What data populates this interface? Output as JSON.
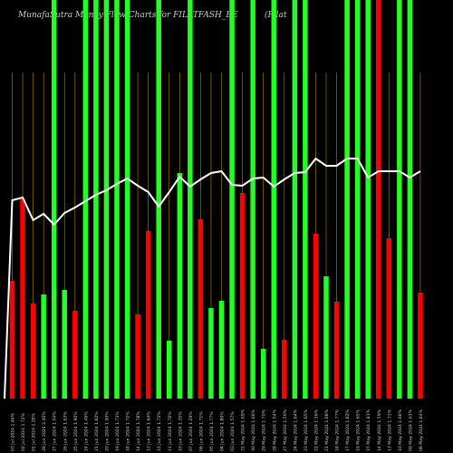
{
  "chart_data": {
    "type": "bar",
    "title": "MunafaSutra  Money Flow  Charts for FILATFASH_BE",
    "title_right": "(Filat",
    "ylim": [
      0,
      440
    ],
    "categories": [
      "03 Jul 2024 1.46%",
      "02 Jul 2024 1.72%",
      "01 Jul 2024 1.28%",
      "28 Jun 2024 2.40%",
      "27 Jun 2024 1.54%",
      "26 Jun 2024 1.93%",
      "25 Jun 2024 1.90%",
      "24 Jun 2024 1.46%",
      "21 Jun 2024 1.82%",
      "20 Jun 2024 1.90%",
      "19 Jun 2024 1.73%",
      "18 Jun 2024 1.72%",
      "14 Jun 2024 1.78%",
      "13 Jun 2024 1.64%",
      "12 Jun 2024 1.72%",
      "11 Jun 2024 1.76%",
      "10 Jun 2024 1.35%",
      "07 Jun 2024 1.29%",
      "06 Jun 2024 1.71%",
      "05 Jun 2024 1.77%",
      "04 Jun 2024 1.80%",
      "03 Jun 2024 1.57%",
      "31 May 2024 1.69%",
      "30 May 2024 1.66%",
      "29 May 2024 1.70%",
      "28 May 2024 1.54%",
      "27 May 2024 1.50%",
      "24 May 2024 1.64%",
      "23 May 2024 1.65%",
      "22 May 2024 1.56%",
      "21 May 2024 1.68%",
      "18 May 2024 1.77%",
      "17 May 2024 1.82%",
      "16 May 2024 1.65%",
      "15 May 2024 1.81%",
      "14 May 2024 1.59%",
      "13 May 2024 1.71%",
      "10 May 2024 1.68%",
      "09 May 2024 1.61%",
      "08 May 2024 1.64%"
    ],
    "series": [
      {
        "values": [
          130,
          220,
          105,
          115,
          440,
          120,
          97,
          440,
          440,
          440,
          440,
          440,
          93,
          185,
          440,
          64,
          249,
          440,
          198,
          100,
          108,
          440,
          227,
          440,
          55,
          440,
          65,
          440,
          440,
          182,
          135,
          107,
          440,
          440,
          440,
          440,
          177,
          440,
          440,
          117
        ],
        "colors": [
          "red",
          "red",
          "red",
          "green",
          "green",
          "green",
          "red",
          "green",
          "green",
          "green",
          "green",
          "green",
          "red",
          "red",
          "green",
          "green",
          "green",
          "green",
          "red",
          "green",
          "green",
          "green",
          "red",
          "green",
          "green",
          "green",
          "red",
          "green",
          "green",
          "red",
          "green",
          "red",
          "green",
          "green",
          "green",
          "red",
          "red",
          "green",
          "green",
          "red"
        ]
      }
    ],
    "line": [
      221,
      218,
      243,
      236,
      248,
      235,
      229,
      222,
      215,
      210,
      203,
      197,
      205,
      212,
      228,
      212,
      195,
      206,
      198,
      191,
      189,
      204,
      205,
      197,
      196,
      206,
      198,
      191,
      190,
      175,
      183,
      183,
      175,
      175,
      196,
      189,
      189,
      189,
      196,
      189
    ],
    "guide_lines": "orange vertical lines above bars",
    "grid": false
  }
}
